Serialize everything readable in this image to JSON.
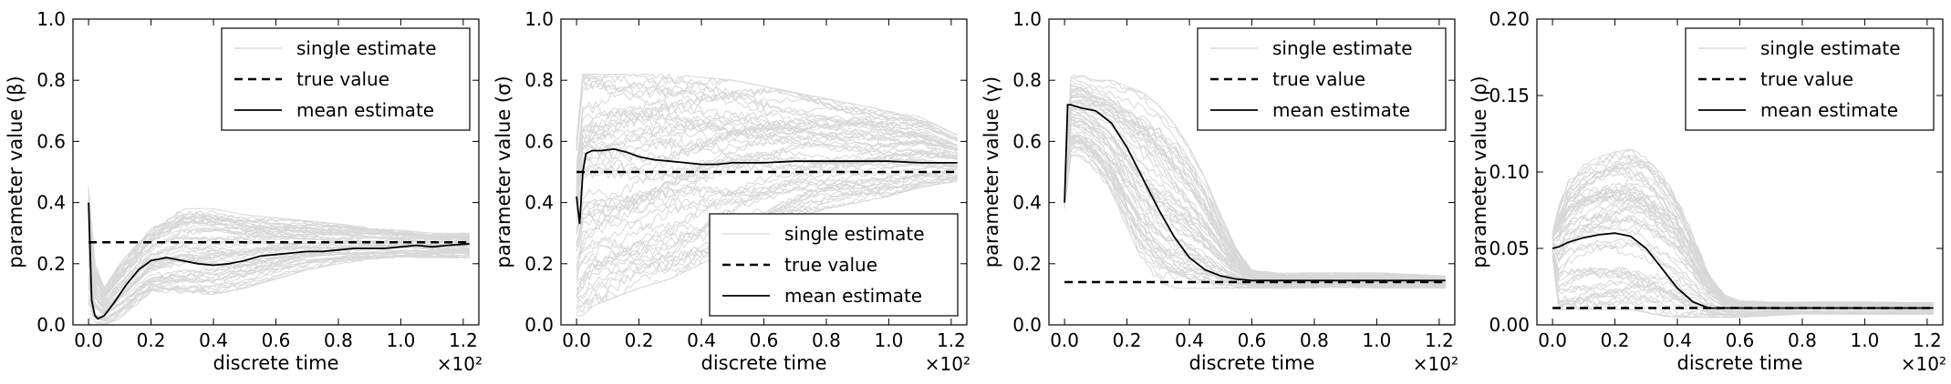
{
  "chart_data": [
    {
      "type": "line",
      "xlabel": "discrete time",
      "ylabel": "parameter value (β)",
      "x_multiplier": "×10²",
      "xlim": [
        -0.05,
        1.25
      ],
      "ylim": [
        0.0,
        1.0
      ],
      "xticks": [
        "0.0",
        "0.2",
        "0.4",
        "0.6",
        "0.8",
        "1.0",
        "1.2"
      ],
      "yticks": [
        "0.0",
        "0.2",
        "0.4",
        "0.6",
        "0.8",
        "1.0"
      ],
      "grid": false,
      "legend_position": "top-right",
      "legend": [
        "single estimate",
        "true value",
        "mean estimate"
      ],
      "series": [
        {
          "name": "true value",
          "style": "dashed",
          "color": "#000000",
          "x": [
            0.0,
            1.22
          ],
          "y": [
            0.27,
            0.27
          ]
        },
        {
          "name": "mean estimate",
          "style": "solid",
          "color": "#000000",
          "x": [
            0.0,
            0.01,
            0.02,
            0.03,
            0.05,
            0.08,
            0.12,
            0.16,
            0.2,
            0.25,
            0.3,
            0.35,
            0.4,
            0.45,
            0.5,
            0.55,
            0.6,
            0.65,
            0.7,
            0.75,
            0.8,
            0.85,
            0.9,
            0.95,
            1.0,
            1.05,
            1.1,
            1.15,
            1.22
          ],
          "y": [
            0.4,
            0.08,
            0.03,
            0.02,
            0.03,
            0.07,
            0.13,
            0.18,
            0.21,
            0.22,
            0.21,
            0.2,
            0.195,
            0.2,
            0.21,
            0.225,
            0.23,
            0.235,
            0.24,
            0.24,
            0.245,
            0.25,
            0.25,
            0.25,
            0.255,
            0.26,
            0.255,
            0.26,
            0.265
          ]
        },
        {
          "name": "single estimate",
          "style": "band",
          "color": "#d8d8d8",
          "x": [
            0.0,
            0.02,
            0.05,
            0.1,
            0.2,
            0.3,
            0.4,
            0.5,
            0.6,
            0.7,
            0.8,
            0.9,
            1.0,
            1.1,
            1.22
          ],
          "lower": [
            0.0,
            0.0,
            0.0,
            0.02,
            0.1,
            0.1,
            0.1,
            0.12,
            0.15,
            0.18,
            0.2,
            0.21,
            0.22,
            0.22,
            0.22
          ],
          "upper": [
            0.45,
            0.2,
            0.12,
            0.2,
            0.32,
            0.38,
            0.38,
            0.36,
            0.35,
            0.34,
            0.33,
            0.32,
            0.31,
            0.3,
            0.3
          ]
        }
      ]
    },
    {
      "type": "line",
      "xlabel": "discrete time",
      "ylabel": "parameter value (σ)",
      "x_multiplier": "×10²",
      "xlim": [
        -0.05,
        1.25
      ],
      "ylim": [
        0.0,
        1.0
      ],
      "xticks": [
        "0.0",
        "0.2",
        "0.4",
        "0.6",
        "0.8",
        "1.0",
        "1.2"
      ],
      "yticks": [
        "0.0",
        "0.2",
        "0.4",
        "0.6",
        "0.8",
        "1.0"
      ],
      "grid": false,
      "legend_position": "bottom-right",
      "legend": [
        "single estimate",
        "true value",
        "mean estimate"
      ],
      "series": [
        {
          "name": "true value",
          "style": "dashed",
          "color": "#000000",
          "x": [
            0.0,
            1.22
          ],
          "y": [
            0.5,
            0.5
          ]
        },
        {
          "name": "mean estimate",
          "style": "solid",
          "color": "#000000",
          "x": [
            0.0,
            0.01,
            0.02,
            0.03,
            0.05,
            0.08,
            0.12,
            0.16,
            0.2,
            0.25,
            0.3,
            0.35,
            0.4,
            0.45,
            0.5,
            0.6,
            0.7,
            0.8,
            0.9,
            1.0,
            1.1,
            1.22
          ],
          "y": [
            0.42,
            0.33,
            0.5,
            0.56,
            0.57,
            0.57,
            0.575,
            0.565,
            0.55,
            0.54,
            0.535,
            0.53,
            0.525,
            0.525,
            0.53,
            0.53,
            0.535,
            0.535,
            0.535,
            0.535,
            0.53,
            0.53
          ]
        },
        {
          "name": "single estimate",
          "style": "band",
          "color": "#d8d8d8",
          "x": [
            0.0,
            0.02,
            0.05,
            0.1,
            0.2,
            0.3,
            0.4,
            0.5,
            0.6,
            0.7,
            0.8,
            0.9,
            1.0,
            1.1,
            1.22
          ],
          "lower": [
            0.03,
            0.03,
            0.06,
            0.08,
            0.12,
            0.15,
            0.2,
            0.25,
            0.3,
            0.35,
            0.38,
            0.4,
            0.42,
            0.45,
            0.47
          ],
          "upper": [
            0.6,
            0.82,
            0.82,
            0.82,
            0.82,
            0.82,
            0.81,
            0.8,
            0.78,
            0.76,
            0.74,
            0.72,
            0.7,
            0.68,
            0.62
          ]
        }
      ]
    },
    {
      "type": "line",
      "xlabel": "discrete time",
      "ylabel": "parameter value (γ)",
      "x_multiplier": "×10²",
      "xlim": [
        -0.05,
        1.25
      ],
      "ylim": [
        0.0,
        1.0
      ],
      "xticks": [
        "0.0",
        "0.2",
        "0.4",
        "0.6",
        "0.8",
        "1.0",
        "1.2"
      ],
      "yticks": [
        "0.0",
        "0.2",
        "0.4",
        "0.6",
        "0.8",
        "1.0"
      ],
      "grid": false,
      "legend_position": "top-right",
      "legend": [
        "single estimate",
        "true value",
        "mean estimate"
      ],
      "series": [
        {
          "name": "true value",
          "style": "dashed",
          "color": "#000000",
          "x": [
            0.0,
            1.22
          ],
          "y": [
            0.14,
            0.14
          ]
        },
        {
          "name": "mean estimate",
          "style": "solid",
          "color": "#000000",
          "x": [
            0.0,
            0.01,
            0.02,
            0.05,
            0.1,
            0.15,
            0.2,
            0.25,
            0.3,
            0.35,
            0.4,
            0.45,
            0.5,
            0.55,
            0.6,
            0.7,
            0.8,
            0.9,
            1.0,
            1.1,
            1.22
          ],
          "y": [
            0.4,
            0.72,
            0.72,
            0.71,
            0.7,
            0.66,
            0.58,
            0.48,
            0.38,
            0.29,
            0.22,
            0.18,
            0.16,
            0.15,
            0.145,
            0.145,
            0.145,
            0.145,
            0.145,
            0.145,
            0.145
          ]
        },
        {
          "name": "single estimate",
          "style": "band",
          "color": "#d8d8d8",
          "x": [
            0.0,
            0.02,
            0.05,
            0.1,
            0.15,
            0.2,
            0.25,
            0.3,
            0.35,
            0.4,
            0.45,
            0.5,
            0.55,
            0.6,
            0.7,
            0.8,
            1.0,
            1.22
          ],
          "lower": [
            0.38,
            0.55,
            0.55,
            0.5,
            0.42,
            0.3,
            0.2,
            0.14,
            0.12,
            0.12,
            0.12,
            0.12,
            0.12,
            0.12,
            0.12,
            0.12,
            0.12,
            0.12
          ],
          "upper": [
            0.42,
            0.82,
            0.82,
            0.8,
            0.8,
            0.78,
            0.76,
            0.72,
            0.66,
            0.58,
            0.48,
            0.36,
            0.25,
            0.18,
            0.17,
            0.17,
            0.17,
            0.16
          ]
        }
      ]
    },
    {
      "type": "line",
      "xlabel": "discrete time",
      "ylabel": "parameter value (ρ)",
      "x_multiplier": "×10²",
      "xlim": [
        -0.05,
        1.25
      ],
      "ylim": [
        0.0,
        0.2
      ],
      "xticks": [
        "0.0",
        "0.2",
        "0.4",
        "0.6",
        "0.8",
        "1.0",
        "1.2"
      ],
      "yticks": [
        "0.00",
        "0.05",
        "0.10",
        "0.15",
        "0.20"
      ],
      "grid": false,
      "legend_position": "top-right",
      "legend": [
        "single estimate",
        "true value",
        "mean estimate"
      ],
      "series": [
        {
          "name": "true value",
          "style": "dashed",
          "color": "#000000",
          "x": [
            0.0,
            1.22
          ],
          "y": [
            0.011,
            0.011
          ]
        },
        {
          "name": "mean estimate",
          "style": "solid",
          "color": "#000000",
          "x": [
            0.0,
            0.02,
            0.05,
            0.1,
            0.15,
            0.2,
            0.25,
            0.3,
            0.35,
            0.4,
            0.45,
            0.5,
            0.55,
            0.6,
            0.7,
            0.8,
            0.9,
            1.0,
            1.1,
            1.22
          ],
          "y": [
            0.05,
            0.051,
            0.054,
            0.057,
            0.059,
            0.06,
            0.058,
            0.05,
            0.037,
            0.024,
            0.015,
            0.011,
            0.011,
            0.011,
            0.011,
            0.011,
            0.011,
            0.011,
            0.011,
            0.011
          ]
        },
        {
          "name": "single estimate",
          "style": "band",
          "color": "#d8d8d8",
          "x": [
            0.0,
            0.02,
            0.05,
            0.1,
            0.15,
            0.2,
            0.25,
            0.3,
            0.35,
            0.4,
            0.45,
            0.5,
            0.55,
            0.6,
            0.7,
            0.8,
            1.0,
            1.22
          ],
          "lower": [
            0.045,
            0.01,
            0.01,
            0.01,
            0.01,
            0.01,
            0.01,
            0.008,
            0.006,
            0.005,
            0.005,
            0.005,
            0.005,
            0.005,
            0.006,
            0.007,
            0.007,
            0.007
          ],
          "upper": [
            0.06,
            0.08,
            0.095,
            0.105,
            0.11,
            0.113,
            0.115,
            0.11,
            0.1,
            0.085,
            0.06,
            0.035,
            0.02,
            0.016,
            0.015,
            0.015,
            0.015,
            0.015
          ]
        }
      ]
    }
  ]
}
